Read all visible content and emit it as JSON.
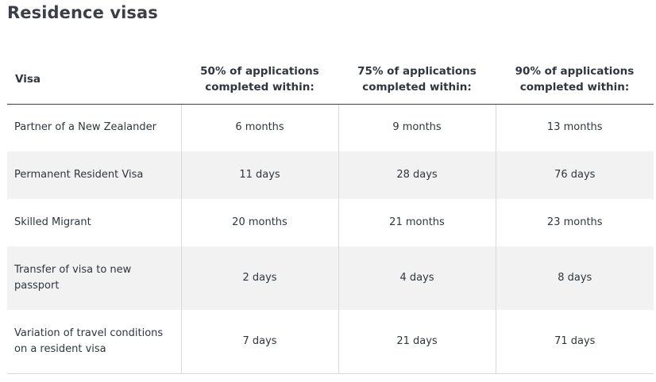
{
  "page_title": "Residence visas",
  "table": {
    "headers": [
      "Visa",
      "50% of applications completed within:",
      "75% of applications completed within:",
      "90% of applications completed within:"
    ],
    "rows": [
      [
        "Partner of a New Zealander",
        "6 months",
        "9 months",
        "13 months"
      ],
      [
        "Permanent Resident Visa",
        "11 days",
        "28 days",
        "76 days"
      ],
      [
        "Skilled Migrant",
        "20 months",
        "21 months",
        "23 months"
      ],
      [
        "Transfer of visa to new passport",
        "2 days",
        "4 days",
        "8 days"
      ],
      [
        "Variation of travel conditions on a resident visa",
        "7 days",
        "21 days",
        "71 days"
      ]
    ]
  }
}
